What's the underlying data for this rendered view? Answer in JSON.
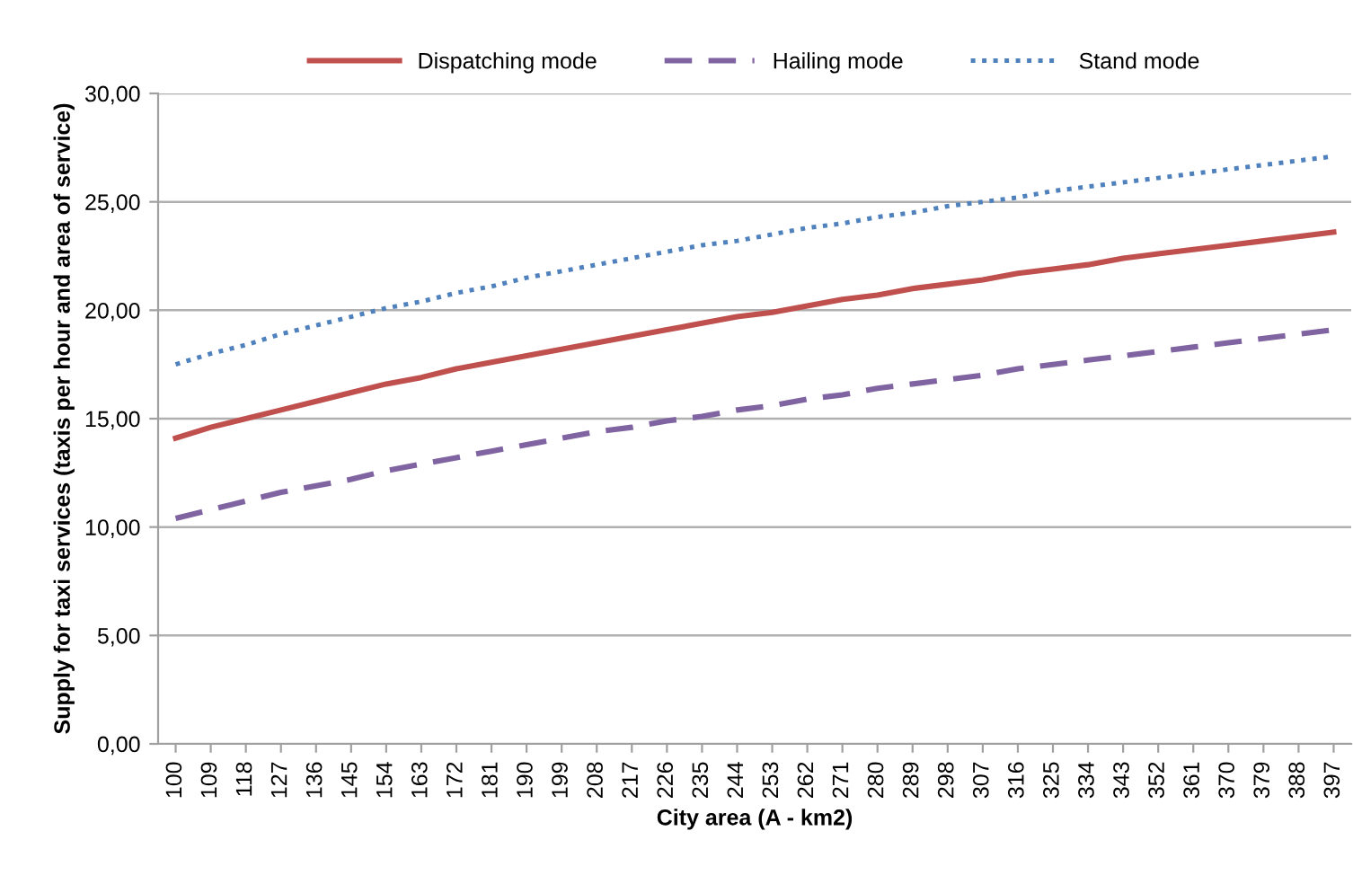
{
  "chart_data": {
    "type": "line",
    "xlabel": "City area (A - km2)",
    "ylabel": "Supply for taxi services (taxis per hour and area of service)",
    "categories": [
      "100",
      "109",
      "118",
      "127",
      "136",
      "145",
      "154",
      "163",
      "172",
      "181",
      "190",
      "199",
      "208",
      "217",
      "226",
      "235",
      "244",
      "253",
      "262",
      "271",
      "280",
      "289",
      "298",
      "307",
      "316",
      "325",
      "334",
      "343",
      "352",
      "361",
      "370",
      "379",
      "388",
      "397"
    ],
    "series": [
      {
        "name": "Dispatching mode",
        "color": "#c0504d",
        "line_style": "solid",
        "values": [
          14.1,
          14.6,
          15.0,
          15.4,
          15.8,
          16.2,
          16.6,
          16.9,
          17.3,
          17.6,
          17.9,
          18.2,
          18.5,
          18.8,
          19.1,
          19.4,
          19.7,
          19.9,
          20.2,
          20.5,
          20.7,
          21.0,
          21.2,
          21.4,
          21.7,
          21.9,
          22.1,
          22.4,
          22.6,
          22.8,
          23.0,
          23.2,
          23.4,
          23.6
        ]
      },
      {
        "name": "Hailing mode",
        "color": "#8064a2",
        "line_style": "dashed",
        "values": [
          10.4,
          10.8,
          11.2,
          11.6,
          11.9,
          12.2,
          12.6,
          12.9,
          13.2,
          13.5,
          13.8,
          14.1,
          14.4,
          14.6,
          14.9,
          15.1,
          15.4,
          15.6,
          15.9,
          16.1,
          16.4,
          16.6,
          16.8,
          17.0,
          17.3,
          17.5,
          17.7,
          17.9,
          18.1,
          18.3,
          18.5,
          18.7,
          18.9,
          19.1
        ]
      },
      {
        "name": "Stand mode",
        "color": "#4f81bd",
        "line_style": "dotted",
        "values": [
          17.5,
          18.0,
          18.4,
          18.9,
          19.3,
          19.7,
          20.1,
          20.4,
          20.8,
          21.1,
          21.5,
          21.8,
          22.1,
          22.4,
          22.7,
          23.0,
          23.2,
          23.5,
          23.8,
          24.0,
          24.3,
          24.5,
          24.8,
          25.0,
          25.2,
          25.5,
          25.7,
          25.9,
          26.1,
          26.3,
          26.5,
          26.7,
          26.9,
          27.1
        ]
      }
    ],
    "ylim": [
      0,
      30
    ],
    "yticks": [
      {
        "value": 0,
        "label": "0,00"
      },
      {
        "value": 5,
        "label": "5,00"
      },
      {
        "value": 10,
        "label": "10,00"
      },
      {
        "value": 15,
        "label": "15,00"
      },
      {
        "value": 20,
        "label": "20,00"
      },
      {
        "value": 25,
        "label": "25,00"
      },
      {
        "value": 30,
        "label": "30,00"
      }
    ],
    "grid": "y",
    "legend": "top"
  }
}
